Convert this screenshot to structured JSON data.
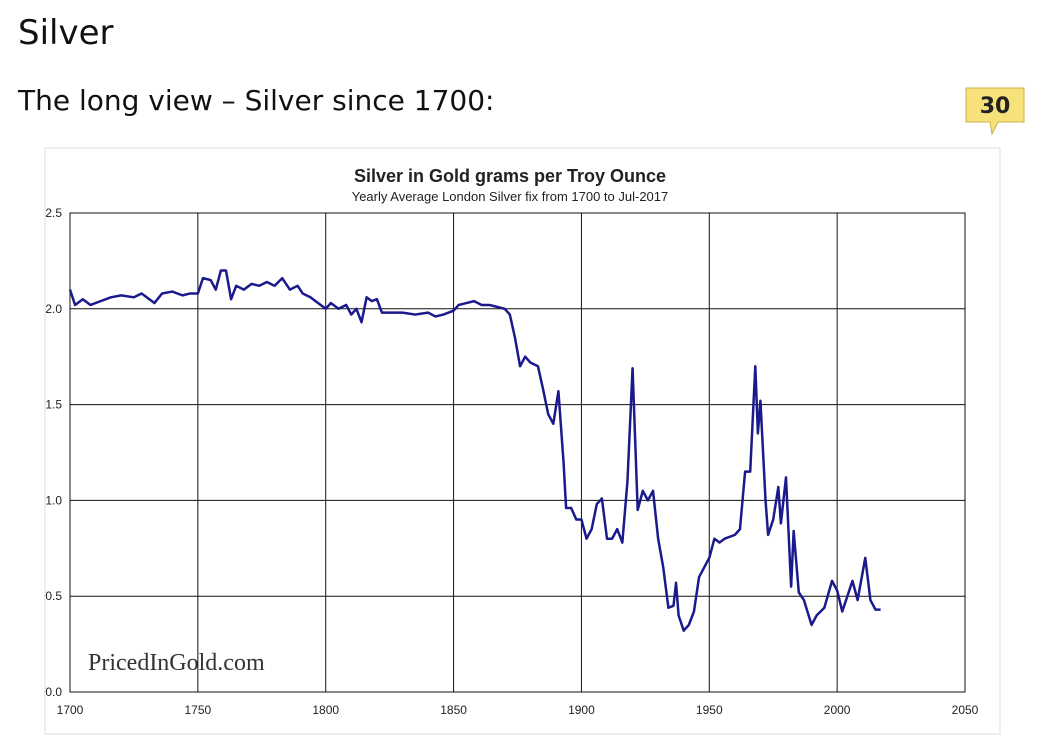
{
  "page": {
    "heading": "Silver",
    "subheading": "The long view – Silver since 1700:",
    "badge": "30"
  },
  "chart_data": {
    "type": "line",
    "title": "Silver in Gold grams per Troy Ounce",
    "subtitle": "Yearly Average London Silver fix from 1700 to Jul-2017",
    "annotation": "PricedInGold.com",
    "x": [
      1700,
      1702,
      1705,
      1708,
      1712,
      1716,
      1720,
      1725,
      1728,
      1730,
      1733,
      1736,
      1740,
      1744,
      1747,
      1750,
      1752,
      1755,
      1757,
      1759,
      1761,
      1763,
      1765,
      1768,
      1771,
      1774,
      1777,
      1780,
      1783,
      1786,
      1789,
      1791,
      1794,
      1797,
      1800,
      1802,
      1805,
      1808,
      1810,
      1812,
      1814,
      1816,
      1818,
      1820,
      1822,
      1825,
      1830,
      1835,
      1840,
      1843,
      1846,
      1850,
      1852,
      1855,
      1858,
      1861,
      1864,
      1867,
      1870,
      1872,
      1874,
      1876,
      1878,
      1880,
      1883,
      1885,
      1887,
      1889,
      1891,
      1893,
      1894,
      1896,
      1898,
      1900,
      1902,
      1904,
      1906,
      1908,
      1910,
      1912,
      1914,
      1916,
      1918,
      1920,
      1922,
      1924,
      1926,
      1928,
      1930,
      1932,
      1934,
      1936,
      1937,
      1938,
      1940,
      1942,
      1944,
      1946,
      1948,
      1950,
      1952,
      1954,
      1956,
      1960,
      1962,
      1964,
      1966,
      1968,
      1969,
      1970,
      1972,
      1973,
      1975,
      1977,
      1978,
      1980,
      1982,
      1983,
      1985,
      1987,
      1990,
      1992,
      1995,
      1998,
      2000,
      2002,
      2004,
      2006,
      2008,
      2011,
      2013,
      2015,
      2017
    ],
    "series": [
      {
        "name": "Silver",
        "color": "#1a1a8c",
        "values": [
          2.1,
          2.02,
          2.05,
          2.02,
          2.04,
          2.06,
          2.07,
          2.06,
          2.08,
          2.06,
          2.03,
          2.08,
          2.09,
          2.07,
          2.08,
          2.08,
          2.16,
          2.15,
          2.1,
          2.2,
          2.2,
          2.05,
          2.12,
          2.1,
          2.13,
          2.12,
          2.14,
          2.12,
          2.16,
          2.1,
          2.12,
          2.08,
          2.06,
          2.03,
          2.0,
          2.03,
          2.0,
          2.02,
          1.97,
          2.0,
          1.93,
          2.06,
          2.04,
          2.05,
          1.98,
          1.98,
          1.98,
          1.97,
          1.98,
          1.96,
          1.97,
          1.99,
          2.02,
          2.03,
          2.04,
          2.02,
          2.02,
          2.01,
          2.0,
          1.97,
          1.85,
          1.7,
          1.75,
          1.72,
          1.7,
          1.58,
          1.45,
          1.4,
          1.57,
          1.2,
          0.96,
          0.96,
          0.9,
          0.9,
          0.8,
          0.85,
          0.98,
          1.01,
          0.8,
          0.8,
          0.85,
          0.78,
          1.1,
          1.69,
          0.95,
          1.05,
          1.0,
          1.05,
          0.8,
          0.65,
          0.44,
          0.45,
          0.57,
          0.4,
          0.32,
          0.35,
          0.42,
          0.6,
          0.65,
          0.7,
          0.8,
          0.78,
          0.8,
          0.82,
          0.85,
          1.15,
          1.15,
          1.7,
          1.35,
          1.52,
          1.0,
          0.82,
          0.9,
          1.07,
          0.88,
          1.12,
          0.55,
          0.84,
          0.52,
          0.48,
          0.35,
          0.4,
          0.44,
          0.58,
          0.53,
          0.42,
          0.5,
          0.58,
          0.48,
          0.7,
          0.48,
          0.43,
          0.43
        ]
      }
    ],
    "xlim": [
      1700,
      2050
    ],
    "xticks": [
      1700,
      1750,
      1800,
      1850,
      1900,
      1950,
      2000,
      2050
    ],
    "ylim": [
      0,
      2.5
    ],
    "yticks": [
      {
        "value": 0,
        "label": "0.0"
      },
      0.5,
      {
        "value": 1,
        "label": "1.0"
      },
      1.5,
      {
        "value": 2,
        "label": "2.0"
      },
      2.5
    ],
    "grid": true
  }
}
